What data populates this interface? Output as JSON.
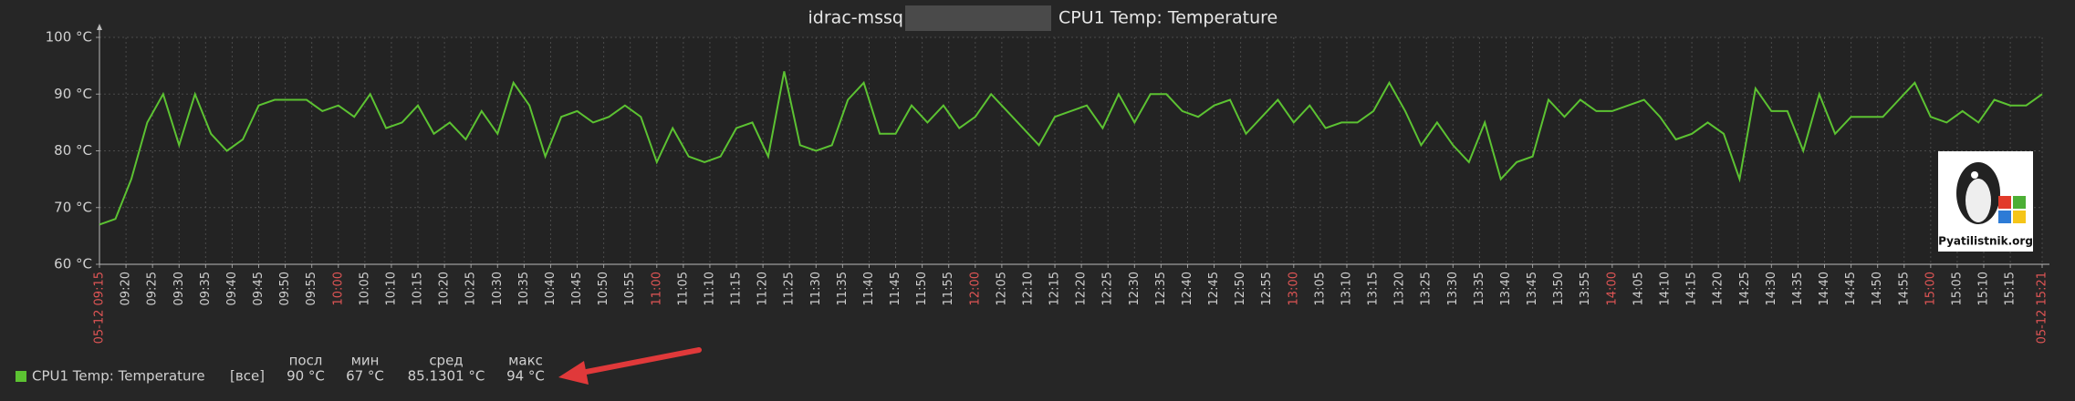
{
  "chart_data": {
    "type": "line",
    "title": [
      "idrac-mssq",
      "CPU1 Temp: Temperature"
    ],
    "x": [
      "09:15",
      "09:18",
      "09:21",
      "09:24",
      "09:27",
      "09:30",
      "09:33",
      "09:36",
      "09:39",
      "09:42",
      "09:45",
      "09:48",
      "09:51",
      "09:54",
      "09:57",
      "10:00",
      "10:03",
      "10:06",
      "10:09",
      "10:12",
      "10:15",
      "10:18",
      "10:21",
      "10:24",
      "10:27",
      "10:30",
      "10:33",
      "10:36",
      "10:39",
      "10:42",
      "10:45",
      "10:48",
      "10:51",
      "10:54",
      "10:57",
      "11:00",
      "11:03",
      "11:06",
      "11:09",
      "11:12",
      "11:15",
      "11:18",
      "11:21",
      "11:24",
      "11:27",
      "11:30",
      "11:33",
      "11:36",
      "11:39",
      "11:42",
      "11:45",
      "11:48",
      "11:51",
      "11:54",
      "11:57",
      "12:00",
      "12:03",
      "12:06",
      "12:09",
      "12:12",
      "12:15",
      "12:18",
      "12:21",
      "12:24",
      "12:27",
      "12:30",
      "12:33",
      "12:36",
      "12:39",
      "12:42",
      "12:45",
      "12:48",
      "12:51",
      "12:54",
      "12:57",
      "13:00",
      "13:03",
      "13:06",
      "13:09",
      "13:12",
      "13:15",
      "13:18",
      "13:21",
      "13:24",
      "13:27",
      "13:30",
      "13:33",
      "13:36",
      "13:39",
      "13:42",
      "13:45",
      "13:48",
      "13:51",
      "13:54",
      "13:57",
      "14:00",
      "14:03",
      "14:06",
      "14:09",
      "14:12",
      "14:15",
      "14:18",
      "14:21",
      "14:24",
      "14:27",
      "14:30",
      "14:33",
      "14:36",
      "14:39",
      "14:42",
      "14:45",
      "14:48",
      "14:51",
      "14:54",
      "14:57",
      "15:00",
      "15:03",
      "15:06",
      "15:09",
      "15:12",
      "15:15",
      "15:18",
      "15:21"
    ],
    "series": [
      {
        "name": "CPU1 Temp: Temperature",
        "color": "#5cc232",
        "values": [
          67,
          68,
          75,
          85,
          90,
          81,
          90,
          83,
          80,
          82,
          88,
          89,
          89,
          89,
          87,
          88,
          86,
          90,
          84,
          85,
          88,
          83,
          85,
          82,
          87,
          83,
          92,
          88,
          79,
          86,
          87,
          85,
          86,
          88,
          86,
          78,
          84,
          79,
          78,
          79,
          84,
          85,
          79,
          94,
          81,
          80,
          81,
          89,
          92,
          83,
          83,
          88,
          85,
          88,
          84,
          86,
          90,
          87,
          84,
          81,
          86,
          87,
          88,
          84,
          90,
          85,
          90,
          90,
          87,
          86,
          88,
          89,
          83,
          86,
          89,
          85,
          88,
          84,
          85,
          85,
          87,
          92,
          87,
          81,
          85,
          81,
          78,
          85,
          75,
          78,
          79,
          89,
          86,
          89,
          87,
          87,
          88,
          89,
          86,
          82,
          83,
          85,
          83,
          75,
          91,
          87,
          87,
          80,
          90,
          83,
          86,
          86,
          86,
          89,
          92,
          86,
          85,
          87,
          85,
          89,
          88,
          88,
          90
        ]
      }
    ],
    "ylim": [
      60,
      100
    ],
    "yticks": [
      {
        "value": 60,
        "label": "60 °C"
      },
      {
        "value": 70,
        "label": "70 °C"
      },
      {
        "value": 80,
        "label": "80 °C"
      },
      {
        "value": 90,
        "label": "90 °C"
      },
      {
        "value": 100,
        "label": "100 °C"
      }
    ],
    "xticks": [
      "05-12 09:15",
      "09:20",
      "09:25",
      "09:30",
      "09:35",
      "09:40",
      "09:45",
      "09:50",
      "09:55",
      "10:00",
      "10:05",
      "10:10",
      "10:15",
      "10:20",
      "10:25",
      "10:30",
      "10:35",
      "10:40",
      "10:45",
      "10:50",
      "10:55",
      "11:00",
      "11:05",
      "11:10",
      "11:15",
      "11:20",
      "11:25",
      "11:30",
      "11:35",
      "11:40",
      "11:45",
      "11:50",
      "11:55",
      "12:00",
      "12:05",
      "12:10",
      "12:15",
      "12:20",
      "12:25",
      "12:30",
      "12:35",
      "12:40",
      "12:45",
      "12:50",
      "12:55",
      "13:00",
      "13:05",
      "13:10",
      "13:15",
      "13:20",
      "13:25",
      "13:30",
      "13:35",
      "13:40",
      "13:45",
      "13:50",
      "13:55",
      "14:00",
      "14:05",
      "14:10",
      "14:15",
      "14:20",
      "14:25",
      "14:30",
      "14:35",
      "14:40",
      "14:45",
      "14:50",
      "14:55",
      "15:00",
      "15:05",
      "15:10",
      "15:15",
      "05-12 15:21"
    ],
    "grid": true,
    "legend_filter": "[все]",
    "legend_headers": [
      "посл",
      "мин",
      "сред",
      "макс"
    ],
    "legend_values": [
      "90 °C",
      "67 °C",
      "85.1301 °C",
      "94 °C"
    ],
    "watermark": "Pyatilistnik.org"
  }
}
